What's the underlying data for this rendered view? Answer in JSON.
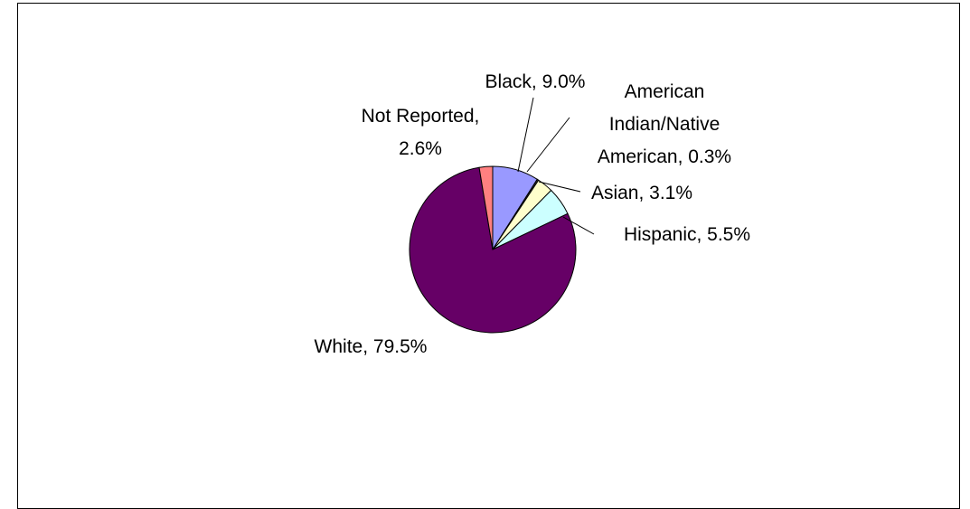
{
  "chart_data": {
    "type": "pie",
    "title": "",
    "start_angle_deg": 0,
    "direction": "clockwise",
    "slices": [
      {
        "name": "Black",
        "value": 9.0,
        "color": "#9999FF",
        "label_lines": [
          "Black, 9.0%"
        ]
      },
      {
        "name": "American Indian/Native American",
        "value": 0.3,
        "color": "#333333",
        "label_lines": [
          "American",
          "Indian/Native",
          "American, 0.3%"
        ]
      },
      {
        "name": "Asian",
        "value": 3.1,
        "color": "#FFFFCC",
        "label_lines": [
          "Asian, 3.1%"
        ]
      },
      {
        "name": "Hispanic",
        "value": 5.5,
        "color": "#CCFFFF",
        "label_lines": [
          "Hispanic, 5.5%"
        ]
      },
      {
        "name": "White",
        "value": 79.5,
        "color": "#660066",
        "label_lines": [
          "White, 79.5%"
        ]
      },
      {
        "name": "Not Reported",
        "value": 2.6,
        "color": "#FF8080",
        "label_lines": [
          "Not Reported,",
          "2.6%"
        ]
      }
    ]
  }
}
